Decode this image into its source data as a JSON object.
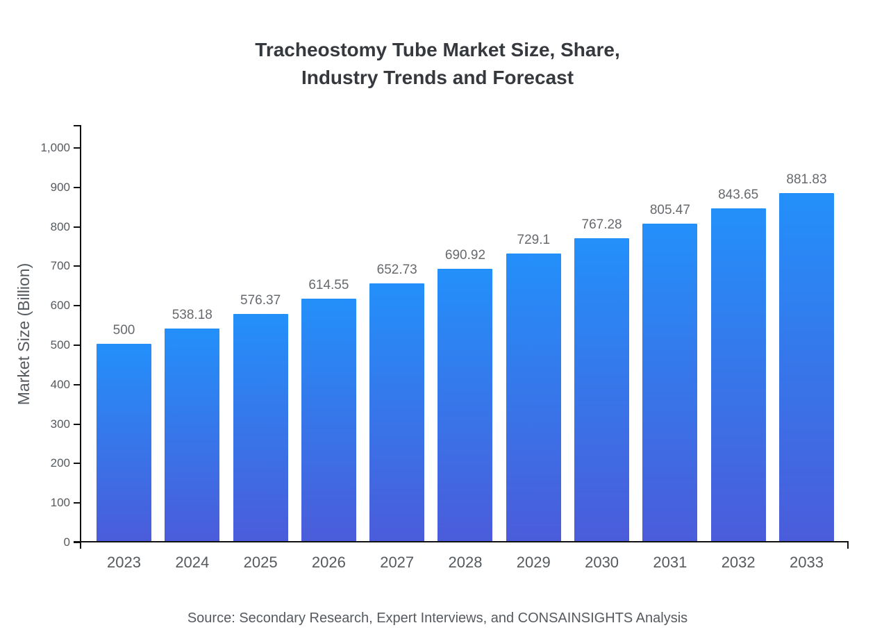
{
  "chart_data": {
    "type": "bar",
    "title": "Tracheostomy Tube Market Size, Share, Industry Trends and Forecast",
    "title_lines": [
      "Tracheostomy Tube Market Size, Share,",
      "Industry Trends and Forecast"
    ],
    "categories": [
      "2023",
      "2024",
      "2025",
      "2026",
      "2027",
      "2028",
      "2029",
      "2030",
      "2031",
      "2032",
      "2033"
    ],
    "values": [
      500,
      538.18,
      576.37,
      614.55,
      652.73,
      690.92,
      729.1,
      767.28,
      805.47,
      843.65,
      881.83
    ],
    "value_labels": [
      "500",
      "538.18",
      "576.37",
      "614.55",
      "652.73",
      "690.92",
      "729.1",
      "767.28",
      "805.47",
      "843.65",
      "881.83"
    ],
    "xlabel": "",
    "ylabel": "Market Size (Billion)",
    "ylim": [
      0,
      1000
    ],
    "ytick_interval": 100,
    "ytick_labels": [
      "0",
      "100",
      "200",
      "300",
      "400",
      "500",
      "600",
      "700",
      "800",
      "900",
      "1,000"
    ],
    "grid": false,
    "legend": "none",
    "bar_gradient_top": "#2390fa",
    "bar_gradient_bottom": "#4b5cda",
    "axis_color": "#111111",
    "source": "Source: Secondary Research, Expert Interviews, and CONSAINSIGHTS Analysis"
  }
}
